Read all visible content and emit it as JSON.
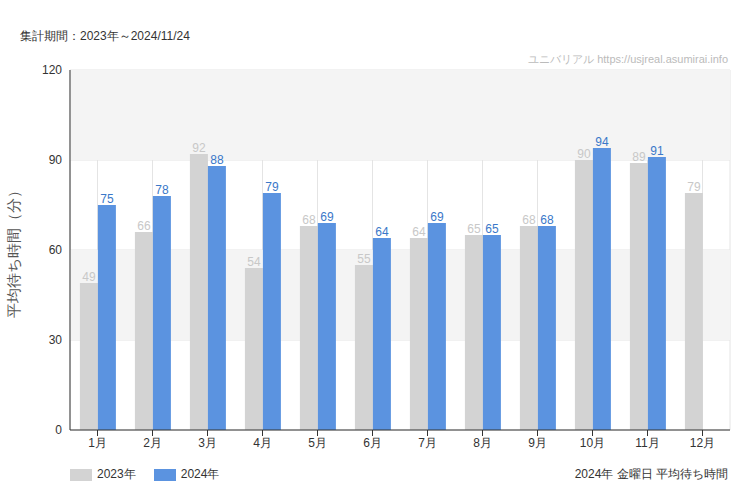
{
  "chart_data": {
    "type": "bar",
    "title": "2024年 金曜日 平均待ち時間",
    "subtitle": "集計期間：2023年～2024/11/24",
    "annotations": [
      "ユニバリアル https://usjreal.asumirai.info"
    ],
    "y_label": "平均待ち時間（分）",
    "categories": [
      "1月",
      "2月",
      "3月",
      "4月",
      "5月",
      "6月",
      "7月",
      "8月",
      "9月",
      "10月",
      "11月",
      "12月"
    ],
    "series": [
      {
        "name": "2023年",
        "color": "#d3d3d3",
        "values": [
          49,
          66,
          92,
          54,
          68,
          55,
          64,
          65,
          68,
          90,
          89,
          79
        ]
      },
      {
        "name": "2024年",
        "color": "#5b93e0",
        "values": [
          75,
          78,
          88,
          79,
          69,
          64,
          69,
          65,
          68,
          94,
          91,
          null
        ]
      }
    ],
    "ylim": [
      0,
      120
    ],
    "yticks": [
      0,
      30,
      60,
      90,
      120
    ],
    "grid": true,
    "legend": "bottom-left",
    "data_labels": true
  }
}
